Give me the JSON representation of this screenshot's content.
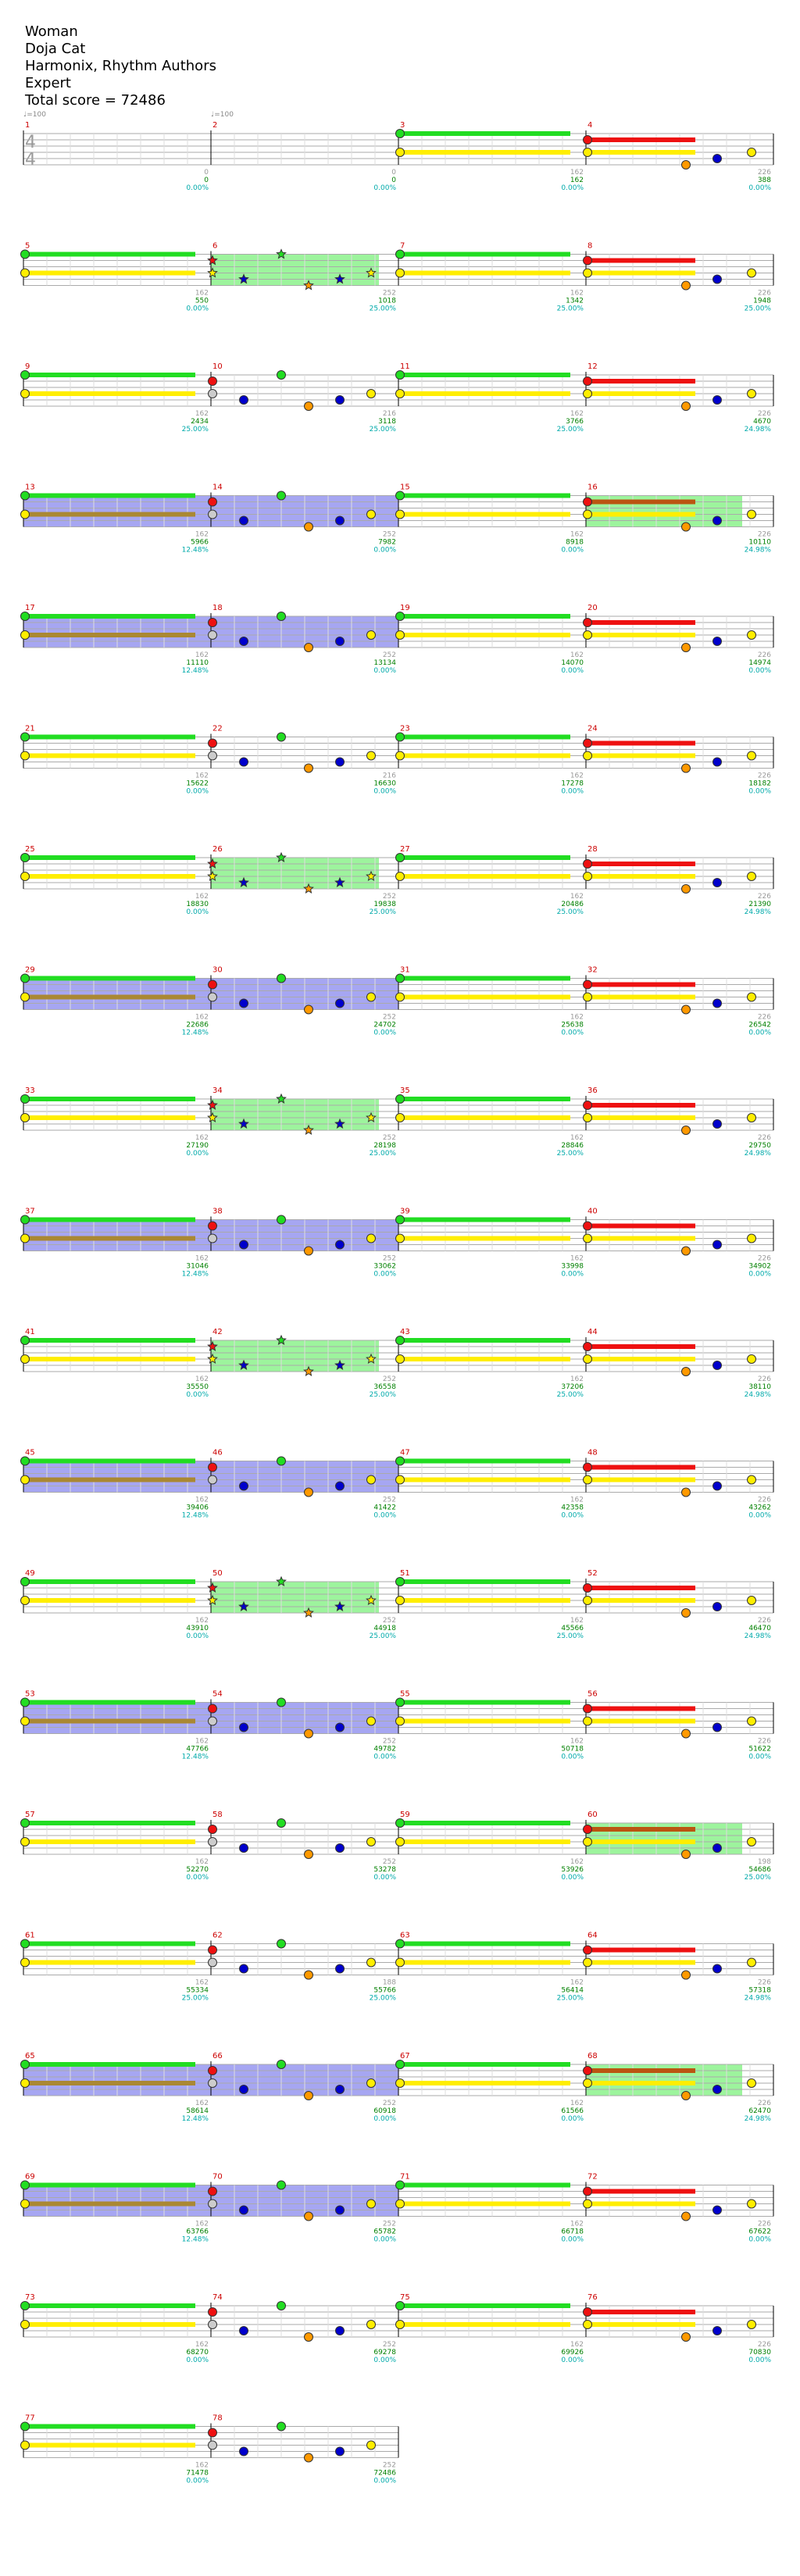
{
  "header": {
    "title": "Woman",
    "artist": "Doja Cat",
    "authors": "Harmonix, Rhythm Authors",
    "difficulty": "Expert",
    "total_score": "Total score = 72486"
  },
  "tempo": "♩=100",
  "time_signature": [
    "4",
    "4"
  ],
  "colors": {
    "green": "#22dd22",
    "red": "#ee1111",
    "yellow": "#ffee00",
    "blue": "#0000cc",
    "orange": "#ff9900",
    "star_power": "#7cf07c",
    "overdrive": "#8888ee",
    "measure_number": "#cc0000",
    "score": "#008000",
    "percent": "#00aaaa",
    "bar_end": "#999999"
  },
  "rows": [
    {
      "measures": [
        {
          "num": "1",
          "style": "none",
          "end_label": "",
          "score": "",
          "pct": "",
          "notes": "none"
        },
        {
          "num": "2",
          "style": "none",
          "end_label": "0",
          "score": "0",
          "pct": "0.00%",
          "notes": "none"
        },
        {
          "num": "3",
          "style": "none",
          "end_label": "0",
          "score": "0",
          "pct": "0.00%",
          "notes": "gy"
        },
        {
          "num": "4",
          "style": "none",
          "end_label": "162",
          "score": "162",
          "pct": "0.00%",
          "notes": "riff"
        }
      ],
      "row_end": {
        "label": "226",
        "score": "388",
        "pct": "0.00%"
      }
    },
    {
      "measures": [
        {
          "num": "5",
          "style": "none",
          "end_label": "",
          "score": "",
          "pct": "",
          "notes": "gy"
        },
        {
          "num": "6",
          "style": "sp",
          "end_label": "162",
          "score": "550",
          "pct": "0.00%",
          "notes": "spstar"
        },
        {
          "num": "7",
          "style": "none",
          "end_label": "252",
          "score": "1018",
          "pct": "25.00%",
          "notes": "gy"
        },
        {
          "num": "8",
          "style": "none",
          "end_label": "162",
          "score": "1342",
          "pct": "25.00%",
          "notes": "riff"
        }
      ],
      "row_end": {
        "label": "226",
        "score": "1948",
        "pct": "25.00%"
      }
    },
    {
      "measures": [
        {
          "num": "9",
          "style": "none",
          "end_label": "",
          "score": "",
          "pct": "",
          "notes": "gy"
        },
        {
          "num": "10",
          "style": "none",
          "end_label": "162",
          "score": "2434",
          "pct": "25.00%",
          "notes": "mix"
        },
        {
          "num": "11",
          "style": "none",
          "end_label": "216",
          "score": "3118",
          "pct": "25.00%",
          "notes": "gy"
        },
        {
          "num": "12",
          "style": "none",
          "end_label": "162",
          "score": "3766",
          "pct": "25.00%",
          "notes": "riff"
        }
      ],
      "row_end": {
        "label": "226",
        "score": "4670",
        "pct": "24.98%"
      }
    },
    {
      "measures": [
        {
          "num": "13",
          "style": "od",
          "end_label": "",
          "score": "",
          "pct": "",
          "notes": "gy"
        },
        {
          "num": "14",
          "style": "od",
          "end_label": "162",
          "score": "5966",
          "pct": "12.48%",
          "notes": "mix"
        },
        {
          "num": "15",
          "style": "none",
          "end_label": "252",
          "score": "7982",
          "pct": "0.00%",
          "notes": "gy"
        },
        {
          "num": "16",
          "style": "sp",
          "end_label": "162",
          "score": "8918",
          "pct": "0.00%",
          "notes": "riff"
        }
      ],
      "row_end": {
        "label": "226",
        "score": "10110",
        "pct": "24.98%"
      }
    },
    {
      "measures": [
        {
          "num": "17",
          "style": "od",
          "end_label": "",
          "score": "",
          "pct": "",
          "notes": "gy"
        },
        {
          "num": "18",
          "style": "od",
          "end_label": "162",
          "score": "11110",
          "pct": "12.48%",
          "notes": "mix"
        },
        {
          "num": "19",
          "style": "none",
          "end_label": "252",
          "score": "13134",
          "pct": "0.00%",
          "notes": "gy"
        },
        {
          "num": "20",
          "style": "none",
          "end_label": "162",
          "score": "14070",
          "pct": "0.00%",
          "notes": "riff"
        }
      ],
      "row_end": {
        "label": "226",
        "score": "14974",
        "pct": "0.00%"
      }
    },
    {
      "measures": [
        {
          "num": "21",
          "style": "none",
          "end_label": "",
          "score": "",
          "pct": "",
          "notes": "gy"
        },
        {
          "num": "22",
          "style": "none",
          "end_label": "162",
          "score": "15622",
          "pct": "0.00%",
          "notes": "mix"
        },
        {
          "num": "23",
          "style": "none",
          "end_label": "216",
          "score": "16630",
          "pct": "0.00%",
          "notes": "gy"
        },
        {
          "num": "24",
          "style": "none",
          "end_label": "162",
          "score": "17278",
          "pct": "0.00%",
          "notes": "riff"
        }
      ],
      "row_end": {
        "label": "226",
        "score": "18182",
        "pct": "0.00%"
      }
    },
    {
      "measures": [
        {
          "num": "25",
          "style": "none",
          "end_label": "",
          "score": "",
          "pct": "",
          "notes": "gy"
        },
        {
          "num": "26",
          "style": "sp",
          "end_label": "162",
          "score": "18830",
          "pct": "0.00%",
          "notes": "spstar"
        },
        {
          "num": "27",
          "style": "none",
          "end_label": "252",
          "score": "19838",
          "pct": "25.00%",
          "notes": "gy"
        },
        {
          "num": "28",
          "style": "none",
          "end_label": "162",
          "score": "20486",
          "pct": "25.00%",
          "notes": "riff"
        }
      ],
      "row_end": {
        "label": "226",
        "score": "21390",
        "pct": "24.98%"
      }
    },
    {
      "measures": [
        {
          "num": "29",
          "style": "od",
          "end_label": "",
          "score": "",
          "pct": "",
          "notes": "gy"
        },
        {
          "num": "30",
          "style": "od",
          "end_label": "162",
          "score": "22686",
          "pct": "12.48%",
          "notes": "mix"
        },
        {
          "num": "31",
          "style": "none",
          "end_label": "252",
          "score": "24702",
          "pct": "0.00%",
          "notes": "gy"
        },
        {
          "num": "32",
          "style": "none",
          "end_label": "162",
          "score": "25638",
          "pct": "0.00%",
          "notes": "riff"
        }
      ],
      "row_end": {
        "label": "226",
        "score": "26542",
        "pct": "0.00%"
      }
    },
    {
      "measures": [
        {
          "num": "33",
          "style": "none",
          "end_label": "",
          "score": "",
          "pct": "",
          "notes": "gy"
        },
        {
          "num": "34",
          "style": "sp",
          "end_label": "162",
          "score": "27190",
          "pct": "0.00%",
          "notes": "spstar"
        },
        {
          "num": "35",
          "style": "none",
          "end_label": "252",
          "score": "28198",
          "pct": "25.00%",
          "notes": "gy"
        },
        {
          "num": "36",
          "style": "none",
          "end_label": "162",
          "score": "28846",
          "pct": "25.00%",
          "notes": "riff"
        }
      ],
      "row_end": {
        "label": "226",
        "score": "29750",
        "pct": "24.98%"
      }
    },
    {
      "measures": [
        {
          "num": "37",
          "style": "od",
          "end_label": "",
          "score": "",
          "pct": "",
          "notes": "gy"
        },
        {
          "num": "38",
          "style": "od",
          "end_label": "162",
          "score": "31046",
          "pct": "12.48%",
          "notes": "mix"
        },
        {
          "num": "39",
          "style": "none",
          "end_label": "252",
          "score": "33062",
          "pct": "0.00%",
          "notes": "gy"
        },
        {
          "num": "40",
          "style": "none",
          "end_label": "162",
          "score": "33998",
          "pct": "0.00%",
          "notes": "riff"
        }
      ],
      "row_end": {
        "label": "226",
        "score": "34902",
        "pct": "0.00%"
      }
    },
    {
      "measures": [
        {
          "num": "41",
          "style": "none",
          "end_label": "",
          "score": "",
          "pct": "",
          "notes": "gy"
        },
        {
          "num": "42",
          "style": "sp",
          "end_label": "162",
          "score": "35550",
          "pct": "0.00%",
          "notes": "spstar"
        },
        {
          "num": "43",
          "style": "none",
          "end_label": "252",
          "score": "36558",
          "pct": "25.00%",
          "notes": "gy"
        },
        {
          "num": "44",
          "style": "none",
          "end_label": "162",
          "score": "37206",
          "pct": "25.00%",
          "notes": "riff"
        }
      ],
      "row_end": {
        "label": "226",
        "score": "38110",
        "pct": "24.98%"
      }
    },
    {
      "measures": [
        {
          "num": "45",
          "style": "od",
          "end_label": "",
          "score": "",
          "pct": "",
          "notes": "gy"
        },
        {
          "num": "46",
          "style": "od",
          "end_label": "162",
          "score": "39406",
          "pct": "12.48%",
          "notes": "mix"
        },
        {
          "num": "47",
          "style": "none",
          "end_label": "252",
          "score": "41422",
          "pct": "0.00%",
          "notes": "gy"
        },
        {
          "num": "48",
          "style": "none",
          "end_label": "162",
          "score": "42358",
          "pct": "0.00%",
          "notes": "riff"
        }
      ],
      "row_end": {
        "label": "226",
        "score": "43262",
        "pct": "0.00%"
      }
    },
    {
      "measures": [
        {
          "num": "49",
          "style": "none",
          "end_label": "",
          "score": "",
          "pct": "",
          "notes": "gy"
        },
        {
          "num": "50",
          "style": "sp",
          "end_label": "162",
          "score": "43910",
          "pct": "0.00%",
          "notes": "spstar"
        },
        {
          "num": "51",
          "style": "none",
          "end_label": "252",
          "score": "44918",
          "pct": "25.00%",
          "notes": "gy"
        },
        {
          "num": "52",
          "style": "none",
          "end_label": "162",
          "score": "45566",
          "pct": "25.00%",
          "notes": "riff"
        }
      ],
      "row_end": {
        "label": "226",
        "score": "46470",
        "pct": "24.98%"
      }
    },
    {
      "measures": [
        {
          "num": "53",
          "style": "od",
          "end_label": "",
          "score": "",
          "pct": "",
          "notes": "gy"
        },
        {
          "num": "54",
          "style": "od",
          "end_label": "162",
          "score": "47766",
          "pct": "12.48%",
          "notes": "mix"
        },
        {
          "num": "55",
          "style": "none",
          "end_label": "252",
          "score": "49782",
          "pct": "0.00%",
          "notes": "gy"
        },
        {
          "num": "56",
          "style": "none",
          "end_label": "162",
          "score": "50718",
          "pct": "0.00%",
          "notes": "riff"
        }
      ],
      "row_end": {
        "label": "226",
        "score": "51622",
        "pct": "0.00%"
      }
    },
    {
      "measures": [
        {
          "num": "57",
          "style": "none",
          "end_label": "",
          "score": "",
          "pct": "",
          "notes": "gy"
        },
        {
          "num": "58",
          "style": "none",
          "end_label": "162",
          "score": "52270",
          "pct": "0.00%",
          "notes": "mix"
        },
        {
          "num": "59",
          "style": "none",
          "end_label": "252",
          "score": "53278",
          "pct": "0.00%",
          "notes": "gy"
        },
        {
          "num": "60",
          "style": "sp",
          "end_label": "162",
          "score": "53926",
          "pct": "0.00%",
          "notes": "riff"
        }
      ],
      "row_end": {
        "label": "198",
        "score": "54686",
        "pct": "25.00%"
      }
    },
    {
      "measures": [
        {
          "num": "61",
          "style": "none",
          "end_label": "",
          "score": "",
          "pct": "",
          "notes": "gy"
        },
        {
          "num": "62",
          "style": "none",
          "end_label": "162",
          "score": "55334",
          "pct": "25.00%",
          "notes": "mix"
        },
        {
          "num": "63",
          "style": "none",
          "end_label": "188",
          "score": "55766",
          "pct": "25.00%",
          "notes": "gy"
        },
        {
          "num": "64",
          "style": "none",
          "end_label": "162",
          "score": "56414",
          "pct": "25.00%",
          "notes": "riff"
        }
      ],
      "row_end": {
        "label": "226",
        "score": "57318",
        "pct": "24.98%"
      }
    },
    {
      "measures": [
        {
          "num": "65",
          "style": "od",
          "end_label": "",
          "score": "",
          "pct": "",
          "notes": "gy"
        },
        {
          "num": "66",
          "style": "od",
          "end_label": "162",
          "score": "58614",
          "pct": "12.48%",
          "notes": "mix"
        },
        {
          "num": "67",
          "style": "none",
          "end_label": "252",
          "score": "60918",
          "pct": "0.00%",
          "notes": "gy"
        },
        {
          "num": "68",
          "style": "sp",
          "end_label": "162",
          "score": "61566",
          "pct": "0.00%",
          "notes": "riff"
        }
      ],
      "row_end": {
        "label": "226",
        "score": "62470",
        "pct": "24.98%"
      }
    },
    {
      "measures": [
        {
          "num": "69",
          "style": "od",
          "end_label": "",
          "score": "",
          "pct": "",
          "notes": "gy"
        },
        {
          "num": "70",
          "style": "od",
          "end_label": "162",
          "score": "63766",
          "pct": "12.48%",
          "notes": "mix"
        },
        {
          "num": "71",
          "style": "none",
          "end_label": "252",
          "score": "65782",
          "pct": "0.00%",
          "notes": "gy"
        },
        {
          "num": "72",
          "style": "none",
          "end_label": "162",
          "score": "66718",
          "pct": "0.00%",
          "notes": "riff"
        }
      ],
      "row_end": {
        "label": "226",
        "score": "67622",
        "pct": "0.00%"
      }
    },
    {
      "measures": [
        {
          "num": "73",
          "style": "none",
          "end_label": "",
          "score": "",
          "pct": "",
          "notes": "gy"
        },
        {
          "num": "74",
          "style": "none",
          "end_label": "162",
          "score": "68270",
          "pct": "0.00%",
          "notes": "mix"
        },
        {
          "num": "75",
          "style": "none",
          "end_label": "252",
          "score": "69278",
          "pct": "0.00%",
          "notes": "gy"
        },
        {
          "num": "76",
          "style": "none",
          "end_label": "162",
          "score": "69926",
          "pct": "0.00%",
          "notes": "riff"
        }
      ],
      "row_end": {
        "label": "226",
        "score": "70830",
        "pct": "0.00%"
      }
    },
    {
      "measures": [
        {
          "num": "77",
          "style": "none",
          "end_label": "",
          "score": "",
          "pct": "",
          "notes": "gy"
        },
        {
          "num": "78",
          "style": "none",
          "end_label": "162",
          "score": "71478",
          "pct": "0.00%",
          "notes": "mix"
        }
      ],
      "row_end": {
        "label": "252",
        "score": "72486",
        "pct": "0.00%"
      }
    }
  ]
}
